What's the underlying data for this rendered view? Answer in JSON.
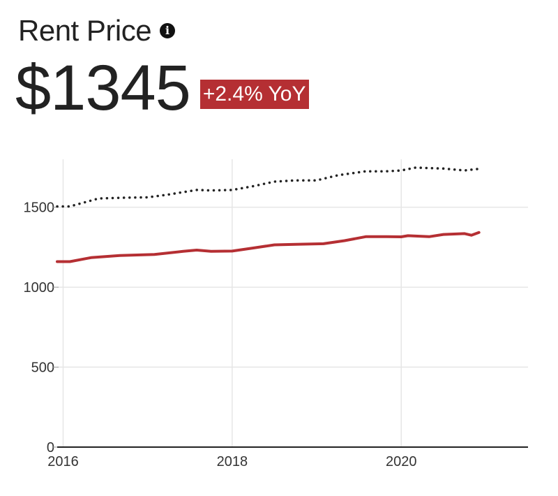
{
  "header": {
    "title": "Rent Price",
    "info_icon": "info-circle-icon",
    "price": "$1345",
    "change_badge": "+2.4% YoY"
  },
  "colors": {
    "primary": "#b52f33",
    "comparison": "#222222",
    "grid": "#e6e6e6",
    "badge": "#b52f33"
  },
  "chart_data": {
    "type": "line",
    "xlim": [
      2015.93,
      2021.5
    ],
    "ylim": [
      0,
      1800
    ],
    "x_ticks": [
      2016,
      2018,
      2020
    ],
    "y_ticks": [
      0,
      500,
      1000,
      1500
    ],
    "grid": true,
    "legend": "none",
    "series": [
      {
        "style": "solid",
        "color": "#b52f33",
        "x": [
          2015.93,
          2016.08,
          2016.33,
          2016.67,
          2017.08,
          2017.42,
          2017.58,
          2017.75,
          2018.0,
          2018.25,
          2018.5,
          2018.75,
          2019.08,
          2019.33,
          2019.58,
          2019.83,
          2020.0,
          2020.08,
          2020.33,
          2020.5,
          2020.75,
          2020.83,
          2020.92
        ],
        "y": [
          1160,
          1160,
          1185,
          1198,
          1205,
          1224,
          1232,
          1224,
          1226,
          1245,
          1265,
          1268,
          1272,
          1291,
          1316,
          1316,
          1315,
          1322,
          1316,
          1330,
          1335,
          1325,
          1342
        ]
      },
      {
        "style": "dotted",
        "color": "#222222",
        "x": [
          2015.93,
          2016.08,
          2016.42,
          2016.75,
          2017.0,
          2017.25,
          2017.58,
          2017.75,
          2018.0,
          2018.25,
          2018.5,
          2018.75,
          2019.0,
          2019.25,
          2019.58,
          2019.83,
          2020.0,
          2020.17,
          2020.5,
          2020.75,
          2020.92
        ],
        "y": [
          1505,
          1505,
          1555,
          1560,
          1562,
          1580,
          1608,
          1605,
          1608,
          1632,
          1660,
          1668,
          1668,
          1700,
          1725,
          1725,
          1730,
          1748,
          1742,
          1730,
          1740
        ]
      }
    ]
  }
}
